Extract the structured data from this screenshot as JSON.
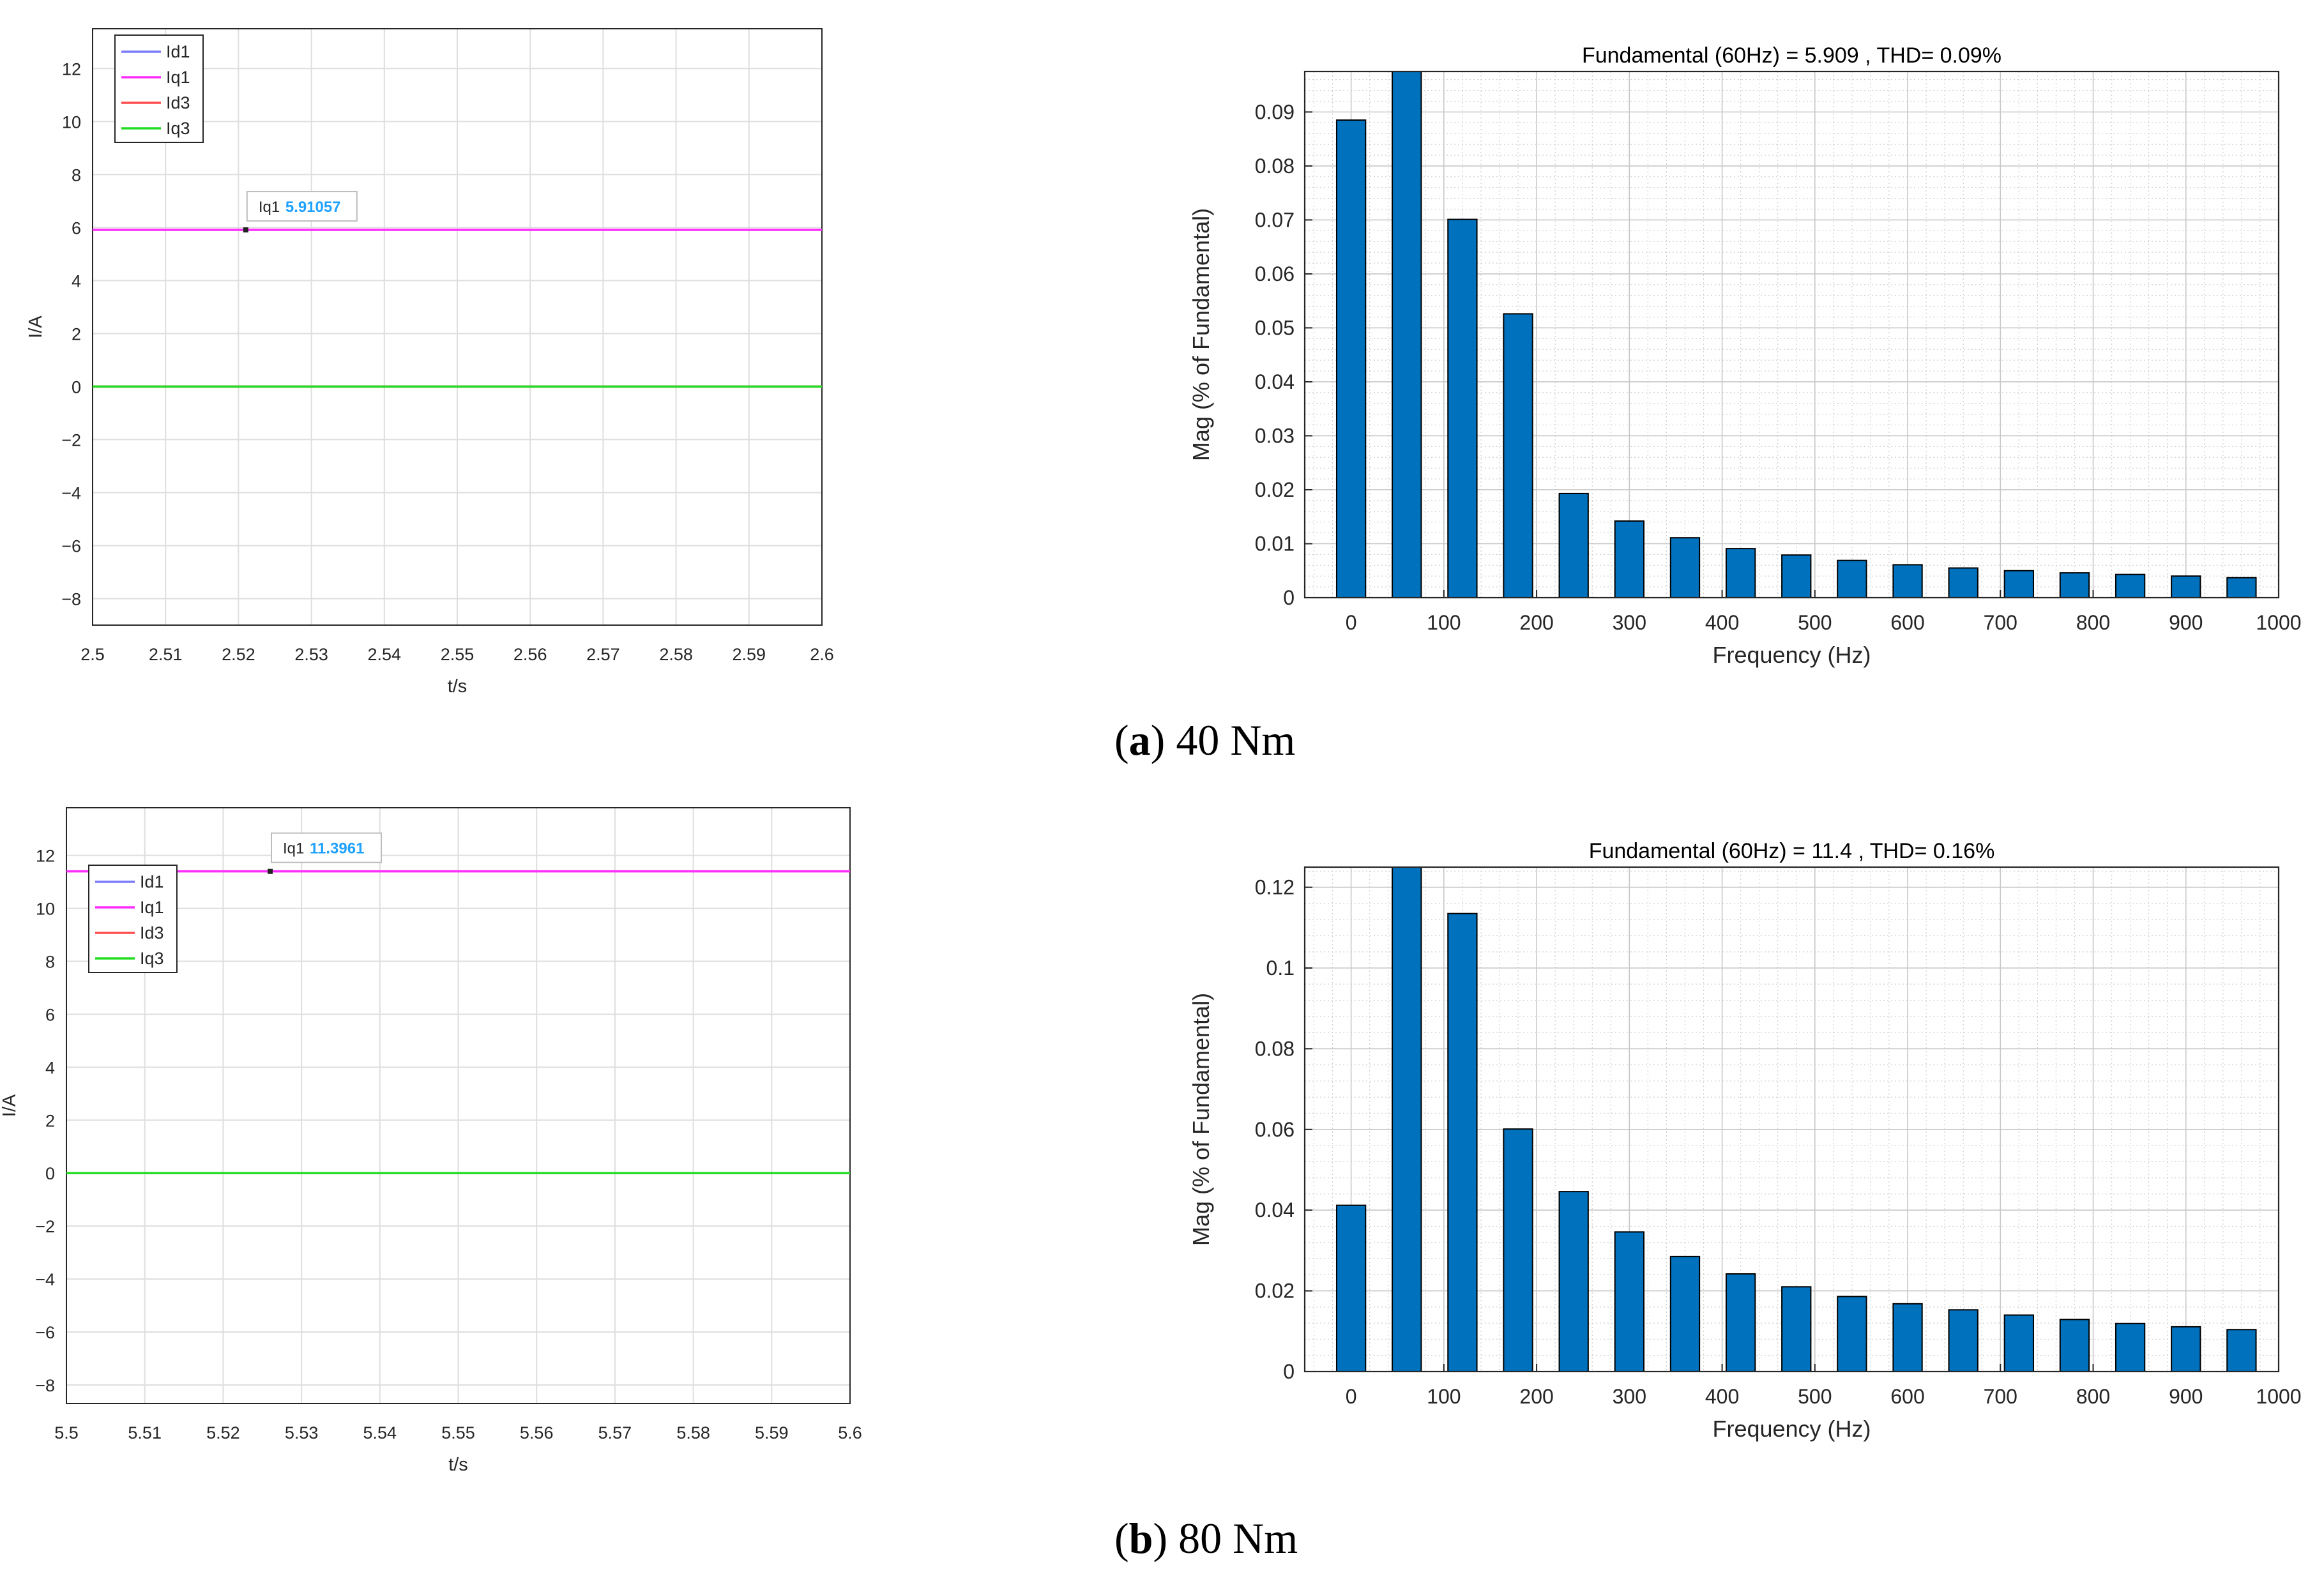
{
  "figure": {
    "captions": [
      {
        "letter": "a",
        "open": "(",
        "close": ")",
        "text": " 40 Nm"
      },
      {
        "letter": "b",
        "open": "(",
        "close": ")",
        "text": " 80 Nm"
      }
    ]
  },
  "colors": {
    "Id1": "#7b7bff",
    "Iq1": "#ff2cff",
    "Id3": "#ff4d4d",
    "Iq3": "#22dd22",
    "bar": "#0072bd",
    "datatip_value": "#1fa2ff"
  },
  "chart_data": [
    {
      "type": "line",
      "panel": "a",
      "xlabel": "t/s",
      "ylabel": "I/A",
      "xlim": [
        2.5,
        2.6
      ],
      "ylim": [
        -9,
        13.5
      ],
      "xticks": [
        2.5,
        2.51,
        2.52,
        2.53,
        2.54,
        2.55,
        2.56,
        2.57,
        2.58,
        2.59,
        2.6
      ],
      "xtick_labels": [
        "2.5",
        "2.51",
        "2.52",
        "2.53",
        "2.54",
        "2.55",
        "2.56",
        "2.57",
        "2.58",
        "2.59",
        "2.6"
      ],
      "yticks": [
        -8,
        -6,
        -4,
        -2,
        0,
        2,
        4,
        6,
        8,
        10,
        12
      ],
      "ytick_labels": [
        "−8",
        "−6",
        "−4",
        "−2",
        "0",
        "2",
        "4",
        "6",
        "8",
        "10",
        "12"
      ],
      "legend_position": "top-left",
      "series": [
        {
          "name": "Id1",
          "y": 0
        },
        {
          "name": "Iq1",
          "y": 5.91057
        },
        {
          "name": "Id3",
          "y": 0
        },
        {
          "name": "Iq3",
          "y": 0
        }
      ],
      "datatip": {
        "series": "Iq1",
        "x": 2.521,
        "y": 5.91057,
        "label": "Iq1",
        "value": "5.91057"
      }
    },
    {
      "type": "bar",
      "panel": "a",
      "title": "Fundamental (60Hz) = 5.909 , THD= 0.09%",
      "xlabel": "Frequency (Hz)",
      "ylabel": "Mag (% of Fundamental)",
      "xlim": [
        -50,
        1000
      ],
      "ylim": [
        0,
        0.0975
      ],
      "xticks": [
        0,
        100,
        200,
        300,
        400,
        500,
        600,
        700,
        800,
        900,
        1000
      ],
      "xtick_labels": [
        "0",
        "100",
        "200",
        "300",
        "400",
        "500",
        "600",
        "700",
        "800",
        "900",
        "1000"
      ],
      "yticks": [
        0,
        0.01,
        0.02,
        0.03,
        0.04,
        0.05,
        0.06,
        0.07,
        0.08,
        0.09
      ],
      "ytick_labels": [
        "0",
        "0.01",
        "0.02",
        "0.03",
        "0.04",
        "0.05",
        "0.06",
        "0.07",
        "0.08",
        "0.09"
      ],
      "x": [
        0,
        60,
        120,
        180,
        240,
        300,
        360,
        420,
        480,
        540,
        600,
        660,
        720,
        780,
        840,
        900,
        960
      ],
      "values": [
        0.0885,
        0.0975,
        0.0701,
        0.0526,
        0.0193,
        0.0142,
        0.0111,
        0.0091,
        0.0079,
        0.0069,
        0.0061,
        0.0055,
        0.005,
        0.0046,
        0.0043,
        0.004,
        0.0037
      ]
    },
    {
      "type": "line",
      "panel": "b",
      "xlabel": "t/s",
      "ylabel": "I/A",
      "xlim": [
        5.5,
        5.6
      ],
      "ylim": [
        -8.7,
        13.8
      ],
      "xticks": [
        5.5,
        5.51,
        5.52,
        5.53,
        5.54,
        5.55,
        5.56,
        5.57,
        5.58,
        5.59,
        5.6
      ],
      "xtick_labels": [
        "5.5",
        "5.51",
        "5.52",
        "5.53",
        "5.54",
        "5.55",
        "5.56",
        "5.57",
        "5.58",
        "5.59",
        "5.6"
      ],
      "yticks": [
        -8,
        -6,
        -4,
        -2,
        0,
        2,
        4,
        6,
        8,
        10,
        12
      ],
      "ytick_labels": [
        "−8",
        "−6",
        "−4",
        "−2",
        "0",
        "2",
        "4",
        "6",
        "8",
        "10",
        "12"
      ],
      "legend_position": "middle-left",
      "series": [
        {
          "name": "Id1",
          "y": 0
        },
        {
          "name": "Iq1",
          "y": 11.3961
        },
        {
          "name": "Id3",
          "y": 0
        },
        {
          "name": "Iq3",
          "y": 0
        }
      ],
      "datatip": {
        "series": "Iq1",
        "x": 5.526,
        "y": 11.3961,
        "label": "Iq1",
        "value": "11.3961"
      }
    },
    {
      "type": "bar",
      "panel": "b",
      "title": "Fundamental (60Hz) = 11.4 , THD= 0.16%",
      "xlabel": "Frequency (Hz)",
      "ylabel": "Mag (% of Fundamental)",
      "xlim": [
        -50,
        1000
      ],
      "ylim": [
        0,
        0.125
      ],
      "xticks": [
        0,
        100,
        200,
        300,
        400,
        500,
        600,
        700,
        800,
        900,
        1000
      ],
      "xtick_labels": [
        "0",
        "100",
        "200",
        "300",
        "400",
        "500",
        "600",
        "700",
        "800",
        "900",
        "1000"
      ],
      "yticks": [
        0,
        0.02,
        0.04,
        0.06,
        0.08,
        0.1,
        0.12
      ],
      "ytick_labels": [
        "0",
        "0.02",
        "0.04",
        "0.06",
        "0.08",
        "0.1",
        "0.12"
      ],
      "x": [
        0,
        60,
        120,
        180,
        240,
        300,
        360,
        420,
        480,
        540,
        600,
        660,
        720,
        780,
        840,
        900,
        960
      ],
      "values": [
        0.0412,
        0.125,
        0.1135,
        0.0601,
        0.0446,
        0.0346,
        0.0285,
        0.0242,
        0.021,
        0.0186,
        0.0168,
        0.0153,
        0.014,
        0.0129,
        0.0119,
        0.0111,
        0.0104
      ]
    }
  ]
}
